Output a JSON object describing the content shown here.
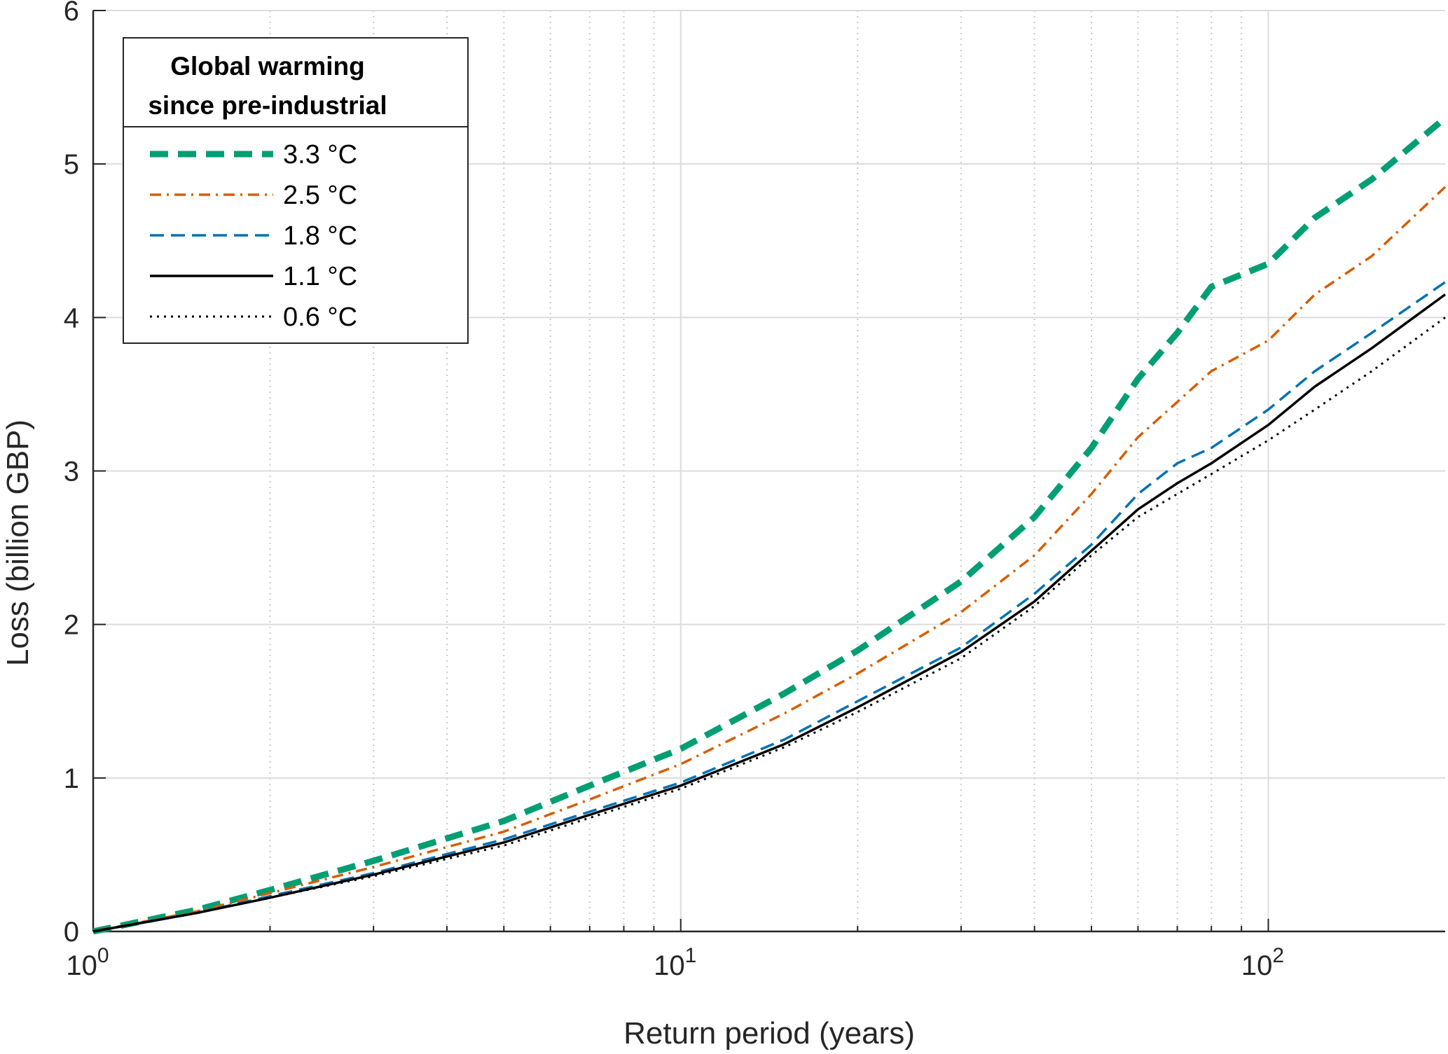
{
  "chart_data": {
    "type": "line",
    "xlabel": "Return period (years)",
    "ylabel": "Loss (billion GBP)",
    "xscale": "log",
    "xlim": [
      1,
      200
    ],
    "ylim": [
      0,
      6
    ],
    "yticks": [
      "0",
      "1",
      "2",
      "3",
      "4",
      "5",
      "6"
    ],
    "xticks": [
      {
        "base": "10",
        "exp": "0",
        "value": 1
      },
      {
        "base": "10",
        "exp": "1",
        "value": 10
      },
      {
        "base": "10",
        "exp": "2",
        "value": 100
      }
    ],
    "grid": true,
    "minor_grid": "dotted",
    "legend": {
      "title_line1": "Global warming",
      "title_line2": "since pre-industrial",
      "placement": "top-left"
    },
    "x": [
      1,
      1.5,
      2,
      3,
      5,
      7,
      10,
      15,
      20,
      30,
      40,
      50,
      60,
      70,
      80,
      100,
      120,
      150,
      200
    ],
    "series": [
      {
        "name": "3.3 °C",
        "color": "#009E73",
        "style": "thick-dashed",
        "values": [
          0,
          0.14,
          0.27,
          0.46,
          0.72,
          0.95,
          1.19,
          1.55,
          1.83,
          2.28,
          2.7,
          3.15,
          3.6,
          3.9,
          4.2,
          4.35,
          4.65,
          4.9,
          5.3
        ]
      },
      {
        "name": "2.5 °C",
        "color": "#D55E00",
        "style": "dash-dot",
        "values": [
          0,
          0.13,
          0.25,
          0.42,
          0.65,
          0.86,
          1.09,
          1.42,
          1.68,
          2.08,
          2.45,
          2.85,
          3.22,
          3.45,
          3.65,
          3.85,
          4.15,
          4.4,
          4.85
        ]
      },
      {
        "name": "1.8 °C",
        "color": "#0072B2",
        "style": "dashed",
        "values": [
          0,
          0.12,
          0.23,
          0.38,
          0.6,
          0.78,
          0.97,
          1.25,
          1.5,
          1.85,
          2.2,
          2.52,
          2.85,
          3.05,
          3.15,
          3.4,
          3.65,
          3.9,
          4.23
        ]
      },
      {
        "name": "1.1 °C",
        "color": "#000000",
        "style": "solid",
        "values": [
          0,
          0.12,
          0.22,
          0.37,
          0.58,
          0.76,
          0.95,
          1.22,
          1.46,
          1.82,
          2.15,
          2.48,
          2.75,
          2.92,
          3.05,
          3.3,
          3.55,
          3.8,
          4.15
        ]
      },
      {
        "name": "0.6 °C",
        "color": "#000000",
        "style": "dotted",
        "values": [
          0,
          0.12,
          0.22,
          0.36,
          0.56,
          0.74,
          0.93,
          1.2,
          1.43,
          1.78,
          2.12,
          2.45,
          2.7,
          2.85,
          2.98,
          3.2,
          3.4,
          3.65,
          4.0
        ]
      }
    ]
  }
}
